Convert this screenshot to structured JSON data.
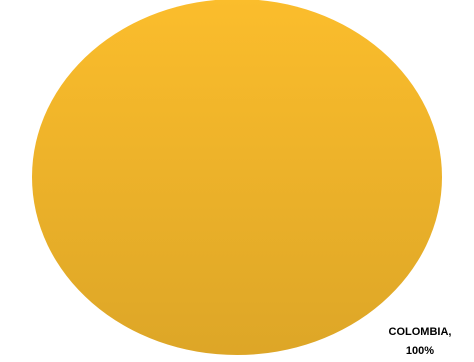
{
  "chart_data": {
    "type": "pie",
    "categories": [
      "COLOMBIA,"
    ],
    "values": [
      100
    ],
    "value_labels": [
      "100%"
    ],
    "colors": [
      "#fbbd2c"
    ]
  }
}
